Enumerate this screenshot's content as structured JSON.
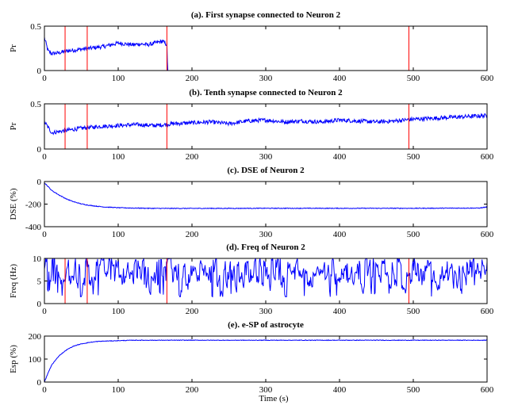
{
  "figure": {
    "xlabel": "Time (s)",
    "colors": {
      "series": "#0000ff",
      "marker_lines": "#ff0000",
      "axes": "#000000"
    }
  },
  "chart_data": [
    {
      "type": "line",
      "title": "(a). First synapse connected to Neuron 2",
      "ylabel": "Pr",
      "xlim": [
        0,
        600
      ],
      "ylim": [
        0,
        0.5
      ],
      "xticks": [
        0,
        100,
        200,
        300,
        400,
        500,
        600
      ],
      "yticks": [
        0,
        0.5
      ],
      "vlines": [
        28,
        58,
        166,
        494
      ],
      "series": [
        {
          "x": [
            0,
            5,
            10,
            20,
            30,
            40,
            50,
            60,
            70,
            80,
            90,
            100,
            110,
            120,
            130,
            140,
            150,
            160,
            166,
            167,
            200,
            300,
            400,
            500,
            600
          ],
          "values": [
            0.37,
            0.22,
            0.19,
            0.2,
            0.22,
            0.23,
            0.24,
            0.25,
            0.26,
            0.27,
            0.29,
            0.31,
            0.3,
            0.29,
            0.3,
            0.29,
            0.31,
            0.33,
            0.29,
            0.0,
            0.0,
            0.0,
            0.0,
            0.0,
            0.0
          ]
        }
      ]
    },
    {
      "type": "line",
      "title": "(b). Tenth synapse connected to Neuron 2",
      "ylabel": "Pr",
      "xlim": [
        0,
        600
      ],
      "ylim": [
        0,
        0.5
      ],
      "xticks": [
        0,
        100,
        200,
        300,
        400,
        500,
        600
      ],
      "yticks": [
        0,
        0.5
      ],
      "vlines": [
        28,
        58,
        166,
        494
      ],
      "series": [
        {
          "x": [
            0,
            10,
            25,
            50,
            75,
            100,
            125,
            150,
            175,
            200,
            225,
            250,
            275,
            300,
            325,
            350,
            375,
            400,
            425,
            450,
            475,
            500,
            525,
            550,
            575,
            600
          ],
          "values": [
            0.3,
            0.18,
            0.2,
            0.23,
            0.25,
            0.26,
            0.27,
            0.26,
            0.28,
            0.29,
            0.3,
            0.28,
            0.31,
            0.32,
            0.3,
            0.31,
            0.3,
            0.32,
            0.31,
            0.3,
            0.31,
            0.33,
            0.34,
            0.35,
            0.36,
            0.37
          ]
        }
      ]
    },
    {
      "type": "line",
      "title": "(c). DSE of Neuron 2",
      "ylabel": "DSE (%)",
      "xlim": [
        0,
        600
      ],
      "ylim": [
        -400,
        0
      ],
      "xticks": [
        0,
        100,
        200,
        300,
        400,
        500,
        600
      ],
      "yticks": [
        -400,
        -200,
        0
      ],
      "vlines": [],
      "series": [
        {
          "x": [
            0,
            5,
            10,
            20,
            30,
            40,
            50,
            60,
            70,
            80,
            100,
            120,
            150,
            200,
            300,
            400,
            500,
            590,
            600
          ],
          "values": [
            -10,
            -45,
            -80,
            -120,
            -155,
            -180,
            -198,
            -210,
            -218,
            -225,
            -232,
            -235,
            -238,
            -238,
            -237,
            -237,
            -237,
            -235,
            -225
          ]
        }
      ]
    },
    {
      "type": "line",
      "title": "(d). Freq of Neuron 2",
      "ylabel": "Freq (Hz)",
      "xlim": [
        0,
        600
      ],
      "ylim": [
        0,
        10
      ],
      "xticks": [
        0,
        100,
        200,
        300,
        400,
        500,
        600
      ],
      "yticks": [
        0,
        5,
        10
      ],
      "vlines": [
        28,
        58,
        166,
        494
      ],
      "series": [
        {
          "x": [
            0,
            100,
            200,
            300,
            400,
            500,
            600
          ],
          "values": [
            7,
            7,
            7,
            7,
            7,
            7,
            7
          ]
        }
      ]
    },
    {
      "type": "line",
      "title": "(e). e-SP of astrocyte",
      "ylabel": "Esp (%)",
      "xlim": [
        0,
        600
      ],
      "ylim": [
        0,
        200
      ],
      "xticks": [
        0,
        100,
        200,
        300,
        400,
        500,
        600
      ],
      "yticks": [
        0,
        100,
        200
      ],
      "vlines": [],
      "series": [
        {
          "x": [
            0,
            5,
            10,
            20,
            30,
            40,
            50,
            60,
            70,
            80,
            90,
            100,
            120,
            200,
            300,
            400,
            500,
            600
          ],
          "values": [
            0,
            40,
            75,
            115,
            140,
            157,
            166,
            172,
            176,
            178,
            179,
            180,
            182,
            182,
            182,
            182,
            182,
            182
          ]
        }
      ]
    }
  ]
}
